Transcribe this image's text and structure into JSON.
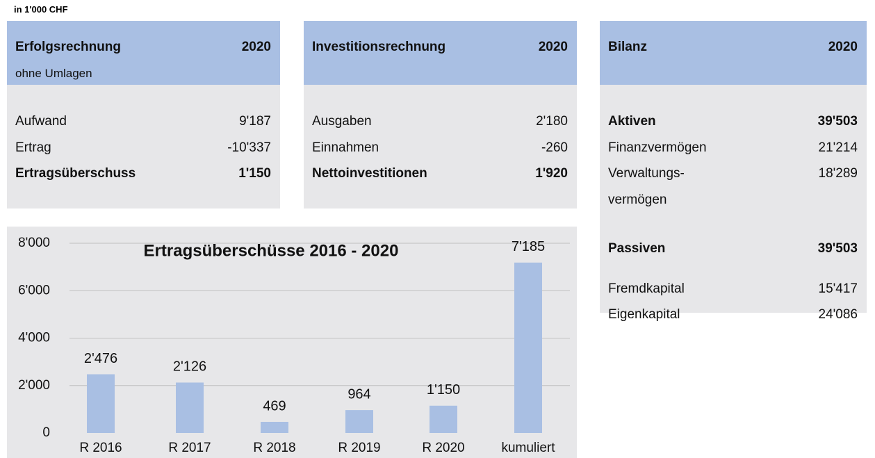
{
  "unit_note": "in 1'000 CHF",
  "tables": [
    {
      "title": "Erfolgsrechnung",
      "year": "2020",
      "subtitle": "ohne Umlagen",
      "rows": [
        {
          "label": "Aufwand",
          "value": "9'187",
          "bold": false
        },
        {
          "label": "Ertrag",
          "value": "-10'337",
          "bold": false
        },
        {
          "label": "Ertragsüberschuss",
          "value": "1'150",
          "bold": true
        }
      ]
    },
    {
      "title": "Investitionsrechnung",
      "year": "2020",
      "rows": [
        {
          "label": "Ausgaben",
          "value": "2'180",
          "bold": false
        },
        {
          "label": "Einnahmen",
          "value": "-260",
          "bold": false
        },
        {
          "label": "Nettoinvestitionen",
          "value": "1'920",
          "bold": true
        }
      ]
    },
    {
      "title": "Bilanz",
      "year": "2020",
      "rows": [
        {
          "label": "Aktiven",
          "value": "39'503",
          "bold": true
        },
        {
          "label": "Finanzvermögen",
          "value": "21'214",
          "bold": false
        },
        {
          "label": "Verwaltungs-\nvermögen",
          "value": "18'289",
          "bold": false
        },
        {
          "label": "Passiven",
          "value": "39'503",
          "bold": true
        },
        {
          "label": "Fremdkapital",
          "value": "15'417",
          "bold": false
        },
        {
          "label": "Eigenkapital",
          "value": "24'086",
          "bold": false
        }
      ]
    }
  ],
  "chart_data": {
    "type": "bar",
    "title": "Ertragsüberschüsse 2016 - 2020",
    "categories": [
      "R 2016",
      "R 2017",
      "R 2018",
      "R 2019",
      "R 2020",
      "kumuliert"
    ],
    "values": [
      2476,
      2126,
      469,
      964,
      1150,
      7185
    ],
    "value_labels": [
      "2'476",
      "2'126",
      "469",
      "964",
      "1'150",
      "7'185"
    ],
    "color": "#a9bfe3",
    "ylim": [
      0,
      8000
    ],
    "yticks": [
      0,
      {
        "value": 2000,
        "label": "2'000"
      },
      {
        "value": 4000,
        "label": "4'000"
      },
      {
        "value": 6000,
        "label": "6'000"
      },
      {
        "value": 8000,
        "label": "8'000"
      }
    ],
    "grid": true
  }
}
